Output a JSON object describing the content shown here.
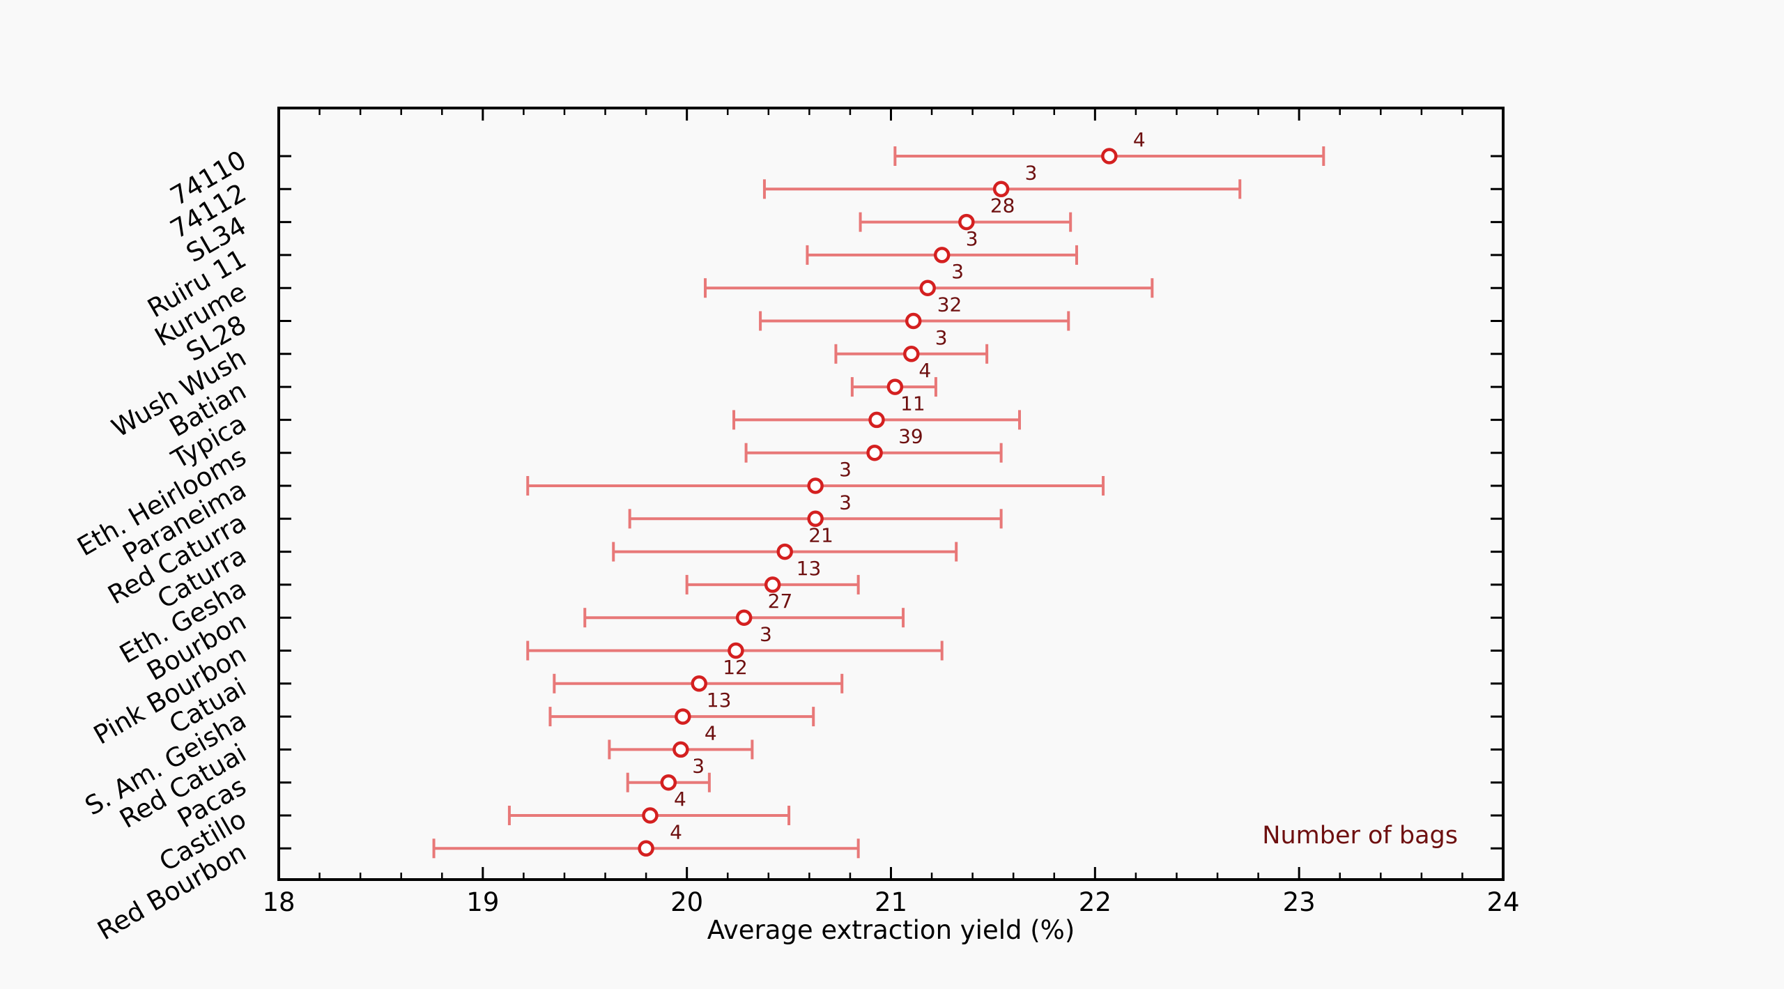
{
  "chart_data": {
    "type": "scatter",
    "title": "",
    "xlabel": "Average extraction yield (%)",
    "ylabel": "",
    "xlim": [
      18,
      24
    ],
    "xticks": [
      "18",
      "19",
      "20",
      "21",
      "22",
      "23",
      "24"
    ],
    "annotation": "Number of bags",
    "colors": {
      "errorbar": "#e87878",
      "marker": "#d42020",
      "count": "#6e1010"
    },
    "grid": false,
    "categories": [
      "74110",
      "74112",
      "SL34",
      "Ruiru 11",
      "Kurume",
      "SL28",
      "Wush Wush",
      "Batian",
      "Typica",
      "Eth. Heirlooms",
      "Paraneima",
      "Red Caturra",
      "Caturra",
      "Eth. Gesha",
      "Bourbon",
      "Pink Bourbon",
      "Catuai",
      "S. Am. Geisha",
      "Red Catuai",
      "Pacas",
      "Castillo",
      "Red Bourbon"
    ],
    "points": [
      {
        "category": "74110",
        "mean": 22.07,
        "low": 21.02,
        "high": 23.12,
        "bags": "4"
      },
      {
        "category": "74112",
        "mean": 21.54,
        "low": 20.38,
        "high": 22.71,
        "bags": "3"
      },
      {
        "category": "SL34",
        "mean": 21.37,
        "low": 20.85,
        "high": 21.88,
        "bags": "28"
      },
      {
        "category": "Ruiru 11",
        "mean": 21.25,
        "low": 20.59,
        "high": 21.91,
        "bags": "3"
      },
      {
        "category": "Kurume",
        "mean": 21.18,
        "low": 20.09,
        "high": 22.28,
        "bags": "3"
      },
      {
        "category": "SL28",
        "mean": 21.11,
        "low": 20.36,
        "high": 21.87,
        "bags": "32"
      },
      {
        "category": "Wush Wush",
        "mean": 21.1,
        "low": 20.73,
        "high": 21.47,
        "bags": "3"
      },
      {
        "category": "Batian",
        "mean": 21.02,
        "low": 20.81,
        "high": 21.22,
        "bags": "4"
      },
      {
        "category": "Typica",
        "mean": 20.93,
        "low": 20.23,
        "high": 21.63,
        "bags": "11"
      },
      {
        "category": "Eth. Heirlooms",
        "mean": 20.92,
        "low": 20.29,
        "high": 21.54,
        "bags": "39"
      },
      {
        "category": "Paraneima",
        "mean": 20.63,
        "low": 19.22,
        "high": 22.04,
        "bags": "3"
      },
      {
        "category": "Red Caturra",
        "mean": 20.63,
        "low": 19.72,
        "high": 21.54,
        "bags": "3"
      },
      {
        "category": "Caturra",
        "mean": 20.48,
        "low": 19.64,
        "high": 21.32,
        "bags": "21"
      },
      {
        "category": "Eth. Gesha",
        "mean": 20.42,
        "low": 20.0,
        "high": 20.84,
        "bags": "13"
      },
      {
        "category": "Bourbon",
        "mean": 20.28,
        "low": 19.5,
        "high": 21.06,
        "bags": "27"
      },
      {
        "category": "Pink Bourbon",
        "mean": 20.24,
        "low": 19.22,
        "high": 21.25,
        "bags": "3"
      },
      {
        "category": "Catuai",
        "mean": 20.06,
        "low": 19.35,
        "high": 20.76,
        "bags": "12"
      },
      {
        "category": "S. Am. Geisha",
        "mean": 19.98,
        "low": 19.33,
        "high": 20.62,
        "bags": "13"
      },
      {
        "category": "Red Catuai",
        "mean": 19.97,
        "low": 19.62,
        "high": 20.32,
        "bags": "4"
      },
      {
        "category": "Pacas",
        "mean": 19.91,
        "low": 19.71,
        "high": 20.11,
        "bags": "3"
      },
      {
        "category": "Castillo",
        "mean": 19.82,
        "low": 19.13,
        "high": 20.5,
        "bags": "4"
      },
      {
        "category": "Red Bourbon",
        "mean": 19.8,
        "low": 18.76,
        "high": 20.84,
        "bags": "4"
      }
    ]
  }
}
